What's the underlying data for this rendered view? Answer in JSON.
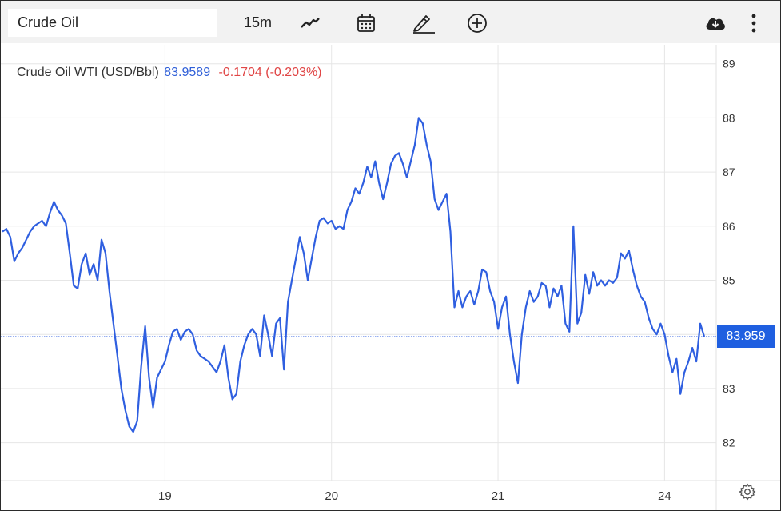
{
  "toolbar": {
    "symbol_value": "Crude Oil",
    "interval": "15m",
    "icons": [
      "line-chart-icon",
      "calendar-icon",
      "pencil-icon",
      "plus-circle-icon",
      "cloud-download-icon",
      "more-vertical-icon"
    ]
  },
  "legend": {
    "name": "Crude Oil WTI (USD/Bbl)",
    "price": "83.9589",
    "change": "-0.1704 (-0.203%)"
  },
  "last_price_label": "83.959",
  "colors": {
    "line": "#2f5fe0",
    "price_tag": "#1f5fe0",
    "change_negative": "#e04545",
    "grid": "#e6e6e6"
  },
  "chart_data": {
    "type": "line",
    "series": [
      {
        "values": [
          85.9,
          85.95,
          85.8,
          85.35,
          85.5,
          85.6,
          85.75,
          85.9,
          86.0,
          86.05,
          86.1,
          86.0,
          86.25,
          86.45,
          86.3,
          86.2,
          86.05,
          85.5,
          84.9,
          84.85,
          85.3,
          85.5,
          85.1,
          85.3,
          85.0,
          85.75,
          85.5,
          84.8,
          84.2,
          83.6,
          83.0,
          82.6,
          82.3,
          82.2,
          82.4,
          83.4,
          84.15,
          83.2,
          82.65,
          83.2,
          83.35,
          83.5,
          83.8,
          84.05,
          84.1,
          83.9,
          84.05,
          84.1,
          84.0,
          83.7,
          83.6,
          83.55,
          83.5,
          83.4,
          83.3,
          83.5,
          83.8,
          83.2,
          82.8,
          82.9,
          83.5,
          83.8,
          84.0,
          84.1,
          84.0,
          83.6,
          84.35,
          84.0,
          83.6,
          84.2,
          84.3,
          83.35,
          84.6,
          85.0,
          85.4,
          85.8,
          85.5,
          85.0,
          85.4,
          85.8,
          86.1,
          86.15,
          86.05,
          86.1,
          85.95,
          86.0,
          85.95,
          86.3,
          86.45,
          86.7,
          86.6,
          86.8,
          87.1,
          86.9,
          87.2,
          86.8,
          86.5,
          86.8,
          87.15,
          87.3,
          87.35,
          87.15,
          86.9,
          87.2,
          87.5,
          88.0,
          87.9,
          87.5,
          87.2,
          86.5,
          86.3,
          86.45,
          86.6,
          85.9,
          84.5,
          84.8,
          84.5,
          84.7,
          84.8,
          84.55,
          84.8,
          85.2,
          85.15,
          84.8,
          84.6,
          84.1,
          84.5,
          84.7,
          84.0,
          83.5,
          83.1,
          84.0,
          84.5,
          84.8,
          84.6,
          84.7,
          84.95,
          84.9,
          84.5,
          84.85,
          84.7,
          84.9,
          84.2,
          84.05,
          86.0,
          84.2,
          84.4,
          85.1,
          84.75,
          85.15,
          84.9,
          85.0,
          84.9,
          85.0,
          84.95,
          85.05,
          85.5,
          85.4,
          85.55,
          85.2,
          84.9,
          84.7,
          84.6,
          84.3,
          84.1,
          84.0,
          84.2,
          84.0,
          83.6,
          83.3,
          83.55,
          82.9,
          83.3,
          83.5,
          83.75,
          83.5,
          84.2,
          83.96
        ]
      }
    ],
    "x_tick_labels": [
      "19",
      "20",
      "21",
      "24"
    ],
    "y_tick_labels": [
      "82",
      "83",
      "84",
      "85",
      "86",
      "87",
      "88",
      "89"
    ],
    "ylim": [
      81.3,
      89.35
    ],
    "x_ticks_at_index": [
      41,
      83,
      125,
      167
    ],
    "last_value_line": 83.959,
    "grid": true
  }
}
